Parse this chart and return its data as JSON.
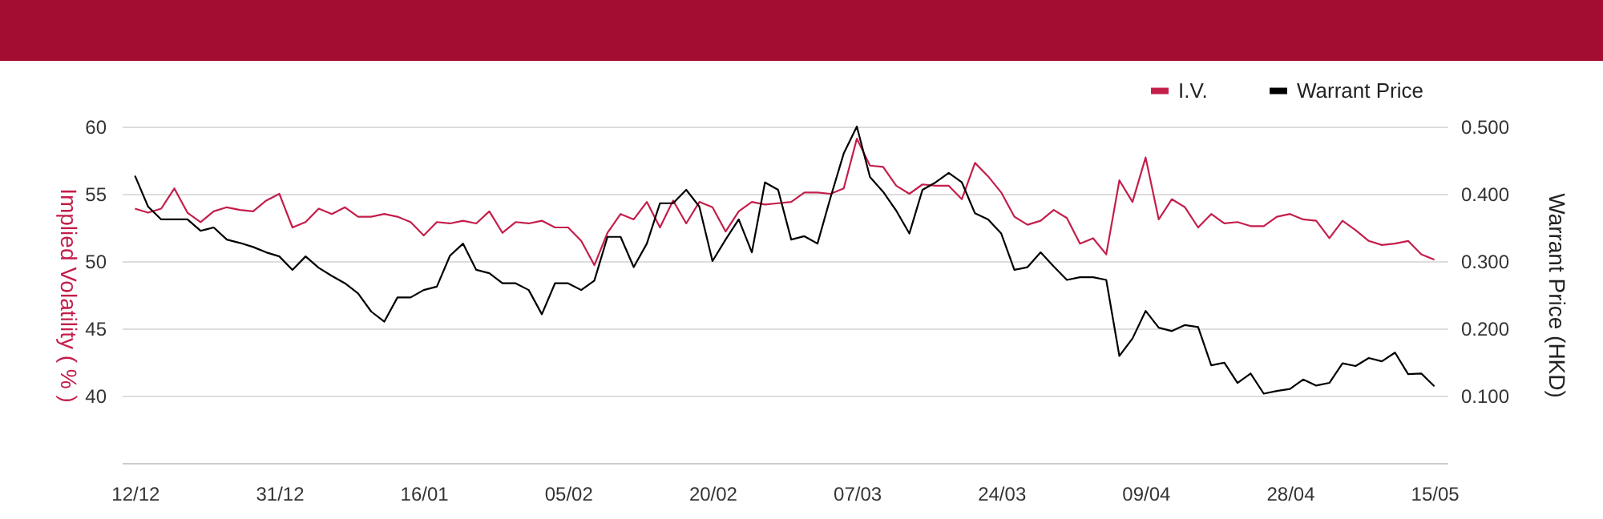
{
  "chart_data": {
    "type": "line",
    "categories": [
      "12/12",
      null,
      null,
      null,
      null,
      null,
      null,
      null,
      null,
      null,
      null,
      "31/12",
      null,
      null,
      null,
      null,
      null,
      null,
      null,
      null,
      null,
      null,
      "16/01",
      null,
      null,
      null,
      null,
      null,
      null,
      null,
      null,
      null,
      null,
      "05/02",
      null,
      null,
      null,
      null,
      null,
      null,
      null,
      null,
      null,
      null,
      "20/02",
      null,
      null,
      null,
      null,
      null,
      null,
      null,
      null,
      null,
      null,
      "07/03",
      null,
      null,
      null,
      null,
      null,
      null,
      null,
      null,
      null,
      null,
      "24/03",
      null,
      null,
      null,
      null,
      null,
      null,
      null,
      null,
      null,
      null,
      "09/04",
      null,
      null,
      null,
      null,
      null,
      null,
      null,
      null,
      null,
      null,
      "28/04",
      null,
      null,
      null,
      null,
      null,
      null,
      null,
      null,
      null,
      null,
      "15/05"
    ],
    "series": [
      {
        "name": "I.V.",
        "color": "#c41e4a",
        "values": [
          53.9,
          53.6,
          53.9,
          55.4,
          53.6,
          52.9,
          53.7,
          54.0,
          53.8,
          53.7,
          54.5,
          55.0,
          52.5,
          52.9,
          53.9,
          53.5,
          54.0,
          53.3,
          53.3,
          53.5,
          53.3,
          52.9,
          51.9,
          52.9,
          52.8,
          53.0,
          52.8,
          53.7,
          52.1,
          52.9,
          52.8,
          53.0,
          52.5,
          52.5,
          51.5,
          49.7,
          52.1,
          53.5,
          53.1,
          54.4,
          52.5,
          54.5,
          52.8,
          54.4,
          54.0,
          52.2,
          53.7,
          54.4,
          54.2,
          54.3,
          54.4,
          55.1,
          55.1,
          55.0,
          55.4,
          59.1,
          57.1,
          57.0,
          55.6,
          55.0,
          55.7,
          55.6,
          55.6,
          54.6,
          57.3,
          56.3,
          55.1,
          53.3,
          52.7,
          53.0,
          53.8,
          53.2,
          51.3,
          51.7,
          50.5,
          56.0,
          54.4,
          57.7,
          53.1,
          54.6,
          54.0,
          52.5,
          53.5,
          52.8,
          52.9,
          52.6,
          52.6,
          53.3,
          53.5,
          53.1,
          53.0,
          51.7,
          53.0,
          52.3,
          51.5,
          51.2,
          51.3,
          51.5,
          50.5,
          50.1
        ]
      },
      {
        "name": "Warrant Price",
        "color": "#000000",
        "axis": "y2",
        "values": [
          0.427,
          0.381,
          0.362,
          0.362,
          0.362,
          0.345,
          0.35,
          0.332,
          0.327,
          0.321,
          0.313,
          0.307,
          0.287,
          0.307,
          0.29,
          0.278,
          0.267,
          0.252,
          0.225,
          0.21,
          0.246,
          0.246,
          0.257,
          0.262,
          0.308,
          0.326,
          0.287,
          0.282,
          0.267,
          0.267,
          0.257,
          0.221,
          0.267,
          0.267,
          0.257,
          0.271,
          0.336,
          0.336,
          0.291,
          0.326,
          0.386,
          0.386,
          0.406,
          0.381,
          0.3,
          0.332,
          0.362,
          0.313,
          0.417,
          0.406,
          0.332,
          0.337,
          0.326,
          0.395,
          0.46,
          0.5,
          0.425,
          0.403,
          0.375,
          0.341,
          0.406,
          0.417,
          0.431,
          0.417,
          0.371,
          0.362,
          0.341,
          0.287,
          0.291,
          0.313,
          0.292,
          0.272,
          0.276,
          0.276,
          0.272,
          0.159,
          0.185,
          0.226,
          0.201,
          0.196,
          0.205,
          0.202,
          0.145,
          0.149,
          0.119,
          0.133,
          0.103,
          0.107,
          0.11,
          0.124,
          0.115,
          0.119,
          0.148,
          0.144,
          0.156,
          0.151,
          0.164,
          0.132,
          0.133,
          0.114
        ]
      }
    ],
    "ylabel": "Implied Volatility ( % )",
    "y2label": "Warrant Price (HKD)",
    "ylim": [
      35,
      60
    ],
    "yticks": [
      40,
      45,
      50,
      55,
      60
    ],
    "y2lim": [
      0,
      0.5
    ],
    "y2ticks": [
      {
        "value": 0.1,
        "label": "0.100"
      },
      {
        "value": 0.2,
        "label": "0.200"
      },
      {
        "value": 0.3,
        "label": "0.300"
      },
      {
        "value": 0.4,
        "label": "0.400"
      },
      {
        "value": 0.5,
        "label": "0.500"
      }
    ],
    "grid": "y",
    "legend": "top right",
    "marker": "none",
    "line_style": "solid"
  }
}
